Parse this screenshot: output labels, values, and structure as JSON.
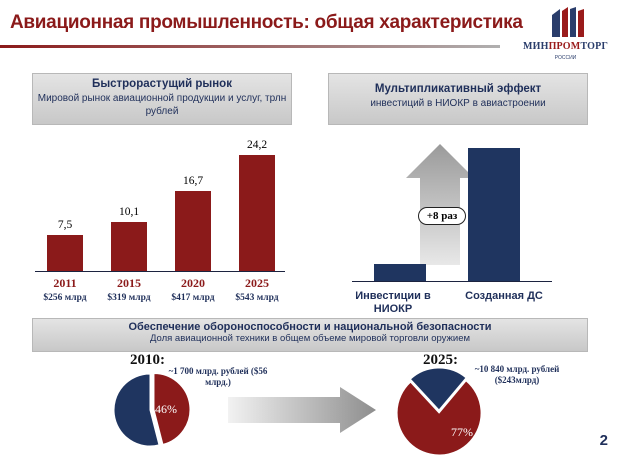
{
  "header": {
    "title": "Авиационная промышленность: общая характеристика",
    "logo": {
      "brand_left": "МИН",
      "brand_mid": "ПРОМ",
      "brand_right": "ТОРГ",
      "sub": "РОССИИ",
      "icon": "flag-stripes-icon"
    }
  },
  "market_panel": {
    "heading": "Быстрорастущий рынок",
    "subheading": "Мировой рынок авиационной продукции и услуг, трлн рублей"
  },
  "multiplier_panel": {
    "heading": "Мультипликативный эффект",
    "subheading": "инвестиций в НИОКР в авиастроении",
    "badge": "+8 раз",
    "categories": [
      "Инвестиции в НИОКР",
      "Созданная ДС"
    ]
  },
  "defense_panel": {
    "heading": "Обеспечение обороноспособности и национальной безопасности",
    "subheading": "Доля авиационной техники в общем объеме мировой торговли оружием",
    "left": {
      "year": "2010:",
      "note": "~1 700 млрд. рублей ($56 млрд.)",
      "pct_label": "46%"
    },
    "right": {
      "year": "2025:",
      "note": "~10 840 млрд. рублей ($243млрд)",
      "pct_label": "77%"
    }
  },
  "page_number": "2",
  "chart_data": [
    {
      "type": "bar",
      "title": "Мировой рынок авиационной продукции и услуг, трлн рублей",
      "categories": [
        "2011",
        "2015",
        "2020",
        "2025"
      ],
      "values": [
        7.5,
        10.1,
        16.7,
        24.2
      ],
      "value_labels": [
        "7,5",
        "10,1",
        "16,7",
        "24,2"
      ],
      "sublabels": [
        "$256 млрд",
        "$319 млрд",
        "$417 млрд",
        "$543 млрд"
      ],
      "ylim": [
        0,
        26
      ],
      "color": "#8b1a1a"
    },
    {
      "type": "bar",
      "categories": [
        "Инвестиции в НИОКР",
        "Созданная ДС"
      ],
      "values": [
        1,
        8
      ],
      "ylim": [
        0,
        8
      ],
      "color": "#1f3560"
    },
    {
      "type": "pie",
      "labels": [
        "2010"
      ],
      "values": [
        46
      ],
      "color_share": "#8b1a1a",
      "color_rest": "#1f3560"
    },
    {
      "type": "pie",
      "labels": [
        "2025"
      ],
      "values": [
        77
      ],
      "color_share": "#8b1a1a",
      "color_rest": "#1f3560"
    }
  ]
}
